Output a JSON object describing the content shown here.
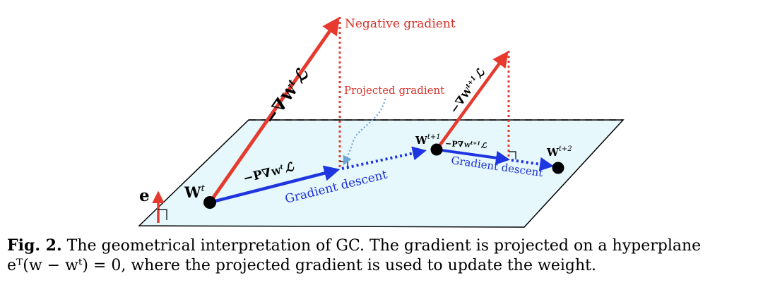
{
  "labels": {
    "negative_gradient": "Negative gradient",
    "projected_gradient": "Projected gradient",
    "gradient_descent_1": "Gradient descent",
    "gradient_descent_2": "Gradient descent",
    "neg_grad_main": "−∇",
    "neg_grad_main_w": "W",
    "neg_grad_main_sup": "t",
    "neg_grad_main_L": "ℒ",
    "neg_grad_second": "−∇",
    "neg_grad_second_w": "W",
    "neg_grad_second_sup": "t+1",
    "neg_grad_second_L": "ℒ",
    "proj_grad_main": "−P∇",
    "proj_grad_main_w": "W",
    "proj_grad_main_sup": "t",
    "proj_grad_main_L": "ℒ",
    "proj_grad_second": "−P∇",
    "proj_grad_second_w": "W",
    "proj_grad_second_sup": "t+1",
    "proj_grad_second_L": "ℒ",
    "w_t": "W",
    "w_t_sup": "t",
    "w_t1": "W",
    "w_t1_sup": "t+1",
    "w_t2": "W",
    "w_t2_sup": "t+2",
    "e_vector": "e"
  },
  "caption": {
    "fig_label": "Fig. 2.",
    "line1": " The geometrical interpretation of GC. The gradient is projected on a hyperplane",
    "line2": "eᵀ(w − wᵗ) = 0, where the projected gradient is used to update the weight."
  },
  "colors": {
    "plane_fill": "#e6f8fb",
    "gradient_red": "#e63a2e",
    "descent_blue": "#1e35e0",
    "dotted_curve": "#6fa4d8"
  }
}
